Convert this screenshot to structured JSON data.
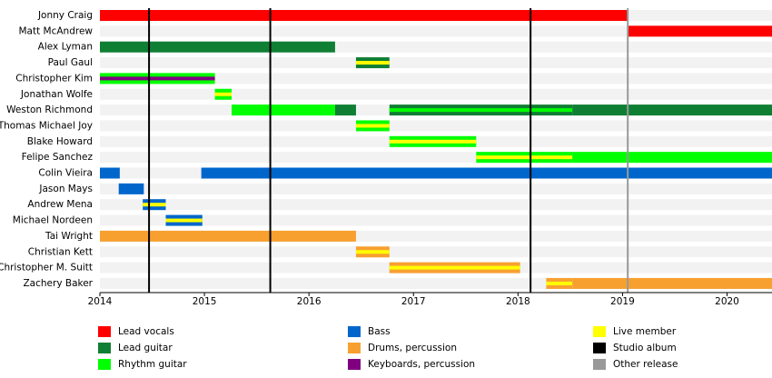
{
  "chart_data": {
    "type": "timeline",
    "xlim": [
      2014,
      2020.43
    ],
    "xticks": [
      2014,
      2015,
      2016,
      2017,
      2018,
      2019,
      2020
    ],
    "members": [
      {
        "name": "Jonny Craig",
        "segments": [
          {
            "start": 2014,
            "end": 2019.05,
            "color": "#ff0000"
          }
        ]
      },
      {
        "name": "Matt McAndrew",
        "segments": [
          {
            "start": 2019.05,
            "end": 2020.43,
            "color": "#ff0000"
          }
        ]
      },
      {
        "name": "Alex Lyman",
        "segments": [
          {
            "start": 2014,
            "end": 2016.25,
            "color": "#0f7f34"
          }
        ]
      },
      {
        "name": "Paul Gaul",
        "segments": [
          {
            "start": 2016.45,
            "end": 2016.77,
            "color": "#0f7f34",
            "stripe": "#ffff00"
          }
        ]
      },
      {
        "name": "Christopher Kim",
        "segments": [
          {
            "start": 2014,
            "end": 2015.1,
            "color": "#00ff00",
            "stripe": "#800080"
          }
        ]
      },
      {
        "name": "Jonathan Wolfe",
        "segments": [
          {
            "start": 2015.1,
            "end": 2015.26,
            "color": "#00ff00",
            "stripe": "#ffff00"
          }
        ]
      },
      {
        "name": "Weston Richmond",
        "segments": [
          {
            "start": 2015.26,
            "end": 2016.25,
            "color": "#00ff00"
          },
          {
            "start": 2016.25,
            "end": 2016.45,
            "color": "#0f7f34"
          },
          {
            "start": 2016.77,
            "end": 2018.52,
            "color": "#0f7f34",
            "stripe": "#00ff00"
          },
          {
            "start": 2018.52,
            "end": 2020.43,
            "color": "#0f7f34"
          }
        ]
      },
      {
        "name": "Thomas Michael Joy",
        "segments": [
          {
            "start": 2016.45,
            "end": 2016.77,
            "color": "#00ff00",
            "stripe": "#ffff00"
          }
        ]
      },
      {
        "name": "Blake Howard",
        "segments": [
          {
            "start": 2016.77,
            "end": 2017.6,
            "color": "#00ff00",
            "stripe": "#ffff00"
          }
        ]
      },
      {
        "name": "Felipe Sanchez",
        "segments": [
          {
            "start": 2017.6,
            "end": 2018.52,
            "color": "#00ff00",
            "stripe": "#ffff00"
          },
          {
            "start": 2018.52,
            "end": 2020.43,
            "color": "#00ff00"
          }
        ]
      },
      {
        "name": "Colin Vieira",
        "segments": [
          {
            "start": 2014,
            "end": 2014.19,
            "color": "#0066cc"
          },
          {
            "start": 2014.97,
            "end": 2020.43,
            "color": "#0066cc"
          }
        ]
      },
      {
        "name": "Jason Mays",
        "segments": [
          {
            "start": 2014.18,
            "end": 2014.42,
            "color": "#0066cc"
          }
        ]
      },
      {
        "name": "Andrew Mena",
        "segments": [
          {
            "start": 2014.41,
            "end": 2014.63,
            "color": "#0066cc",
            "stripe": "#ffff00"
          }
        ]
      },
      {
        "name": "Michael Nordeen",
        "segments": [
          {
            "start": 2014.63,
            "end": 2014.98,
            "color": "#0066cc",
            "stripe": "#ffff00"
          }
        ]
      },
      {
        "name": "Tai Wright",
        "segments": [
          {
            "start": 2014,
            "end": 2016.45,
            "color": "#f7a030"
          }
        ]
      },
      {
        "name": "Christian Kett",
        "segments": [
          {
            "start": 2016.45,
            "end": 2016.77,
            "color": "#f7a030",
            "stripe": "#ffff00"
          }
        ]
      },
      {
        "name": "Christopher M. Suitt",
        "segments": [
          {
            "start": 2016.77,
            "end": 2018.02,
            "color": "#f7a030",
            "stripe": "#ffff00"
          }
        ]
      },
      {
        "name": "Zachery Baker",
        "segments": [
          {
            "start": 2018.27,
            "end": 2018.52,
            "color": "#f7a030",
            "stripe": "#ffff00"
          },
          {
            "start": 2018.52,
            "end": 2020.43,
            "color": "#f7a030"
          }
        ]
      }
    ],
    "studio_albums": [
      2014.47,
      2015.63,
      2018.12
    ],
    "other_releases": [
      2019.05
    ],
    "legend": [
      {
        "name": "Lead vocals",
        "color": "#ff0000"
      },
      {
        "name": "Lead guitar",
        "color": "#0f7f34"
      },
      {
        "name": "Rhythm guitar",
        "color": "#00ff00"
      },
      {
        "name": "Bass",
        "color": "#0066cc"
      },
      {
        "name": "Drums, percussion",
        "color": "#f7a030"
      },
      {
        "name": "Keyboards, percussion",
        "color": "#800080"
      },
      {
        "name": "Live member",
        "color": "#ffff00"
      },
      {
        "name": "Studio album",
        "color": "#000000"
      },
      {
        "name": "Other release",
        "color": "#999999"
      }
    ]
  }
}
